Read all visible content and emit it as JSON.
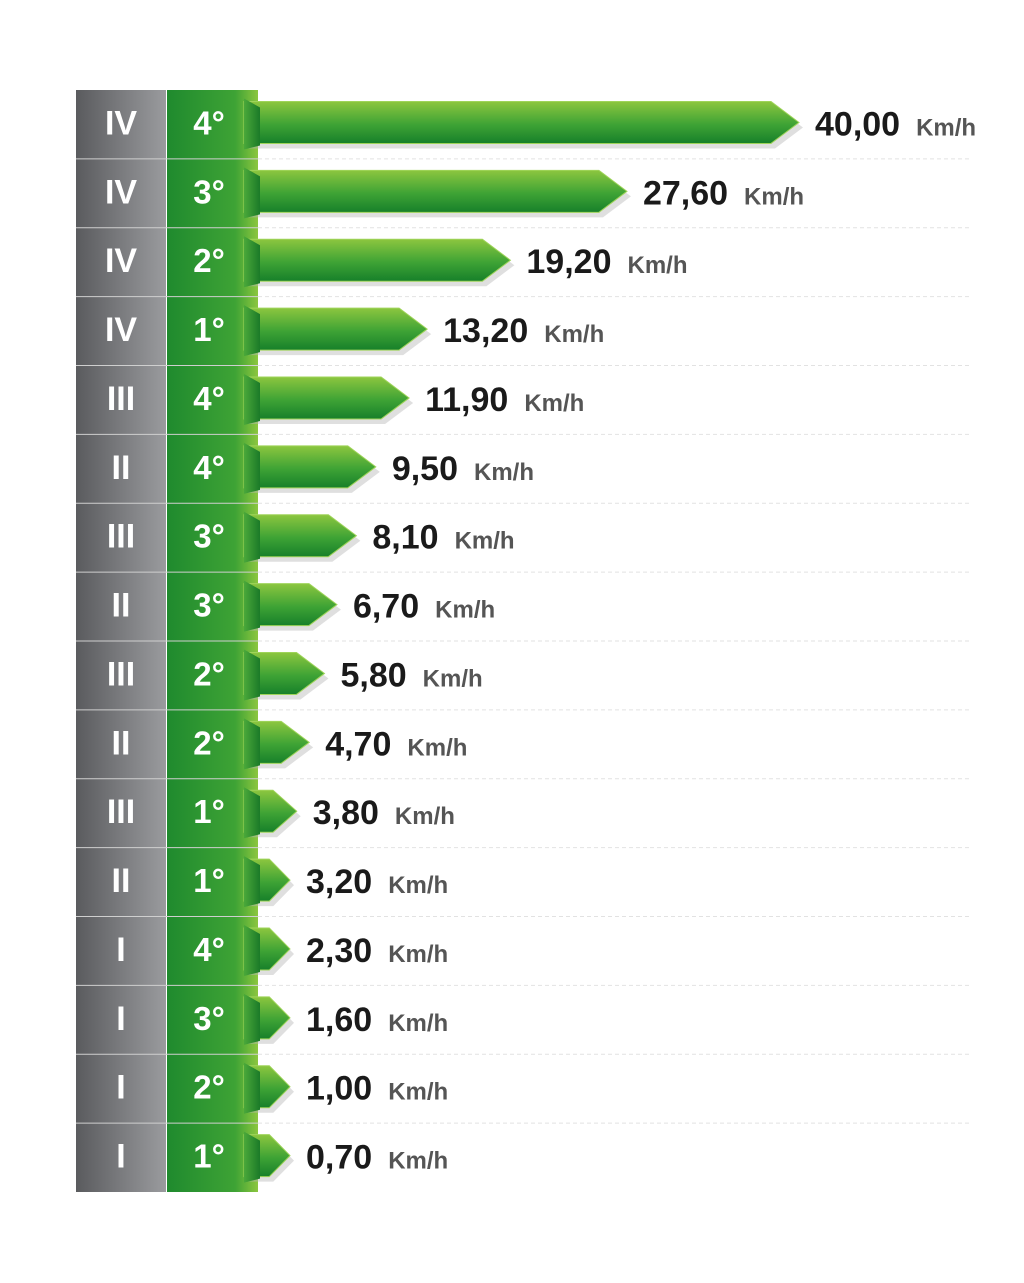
{
  "chart_data": {
    "type": "bar",
    "orientation": "horizontal",
    "unit": "Km/h",
    "rows": [
      {
        "range": "IV",
        "gear": "4°",
        "value_label": "40,00",
        "value": 40.0
      },
      {
        "range": "IV",
        "gear": "3°",
        "value_label": "27,60",
        "value": 27.6
      },
      {
        "range": "IV",
        "gear": "2°",
        "value_label": "19,20",
        "value": 19.2
      },
      {
        "range": "IV",
        "gear": "1°",
        "value_label": "13,20",
        "value": 13.2
      },
      {
        "range": "III",
        "gear": "4°",
        "value_label": "11,90",
        "value": 11.9
      },
      {
        "range": "II",
        "gear": "4°",
        "value_label": "9,50",
        "value": 9.5
      },
      {
        "range": "III",
        "gear": "3°",
        "value_label": "8,10",
        "value": 8.1
      },
      {
        "range": "II",
        "gear": "3°",
        "value_label": "6,70",
        "value": 6.7
      },
      {
        "range": "III",
        "gear": "2°",
        "value_label": "5,80",
        "value": 5.8
      },
      {
        "range": "II",
        "gear": "2°",
        "value_label": "4,70",
        "value": 4.7
      },
      {
        "range": "III",
        "gear": "1°",
        "value_label": "3,80",
        "value": 3.8
      },
      {
        "range": "II",
        "gear": "1°",
        "value_label": "3,20",
        "value": 3.2
      },
      {
        "range": "I",
        "gear": "4°",
        "value_label": "2,30",
        "value": 2.3
      },
      {
        "range": "I",
        "gear": "3°",
        "value_label": "1,60",
        "value": 1.6
      },
      {
        "range": "I",
        "gear": "2°",
        "value_label": "1,00",
        "value": 1.0
      },
      {
        "range": "I",
        "gear": "1°",
        "value_label": "0,70",
        "value": 0.7
      }
    ],
    "xlim": [
      0,
      40
    ],
    "grid": "dashed horizontal separators",
    "colors": {
      "bar_light": "#8cc63f",
      "bar_dark": "#1f8a2e",
      "gear_column": "#2e9a2e",
      "range_column": "#6d6e71",
      "value_text": "#1a1a1a",
      "unit_text": "#555555"
    }
  }
}
